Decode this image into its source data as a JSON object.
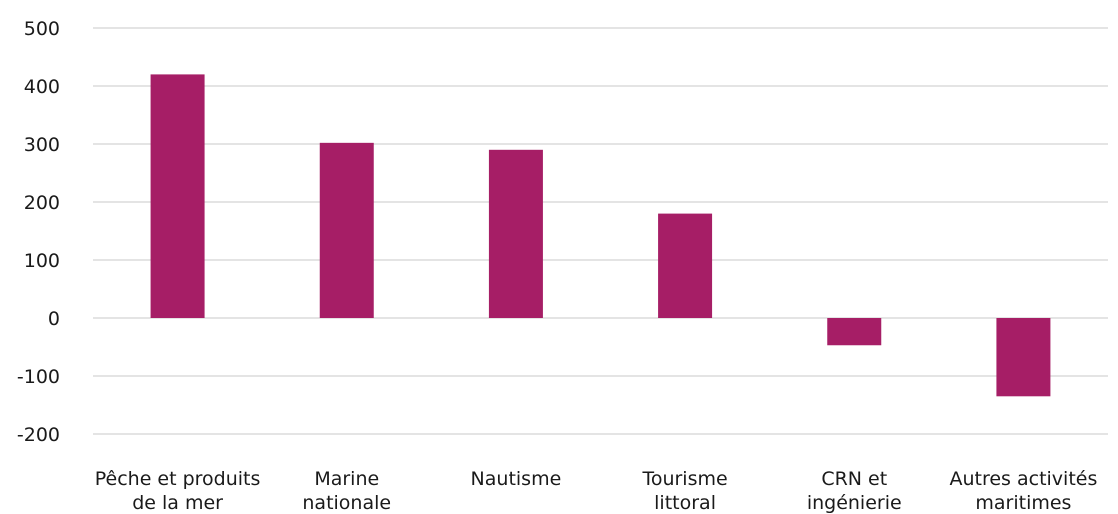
{
  "chart_data": {
    "type": "bar",
    "categories": [
      [
        "Pêche et produits",
        "de la mer"
      ],
      [
        "Marine",
        "nationale"
      ],
      [
        "Nautisme"
      ],
      [
        "Tourisme",
        "littoral"
      ],
      [
        "CRN et",
        "ingénierie"
      ],
      [
        "Autres activités",
        "maritimes"
      ]
    ],
    "values": [
      420,
      302,
      290,
      180,
      -47,
      -135
    ],
    "ylim": [
      -200,
      500
    ],
    "yticks": [
      500,
      400,
      300,
      200,
      100,
      0,
      -100,
      -200
    ],
    "ytick_labels": [
      "500",
      "400",
      "300",
      "200",
      "100",
      "0",
      "-100",
      "-200"
    ],
    "title": "",
    "xlabel": "",
    "ylabel": "",
    "grid": true,
    "legend": "none",
    "bar_color": "#a61e66"
  }
}
